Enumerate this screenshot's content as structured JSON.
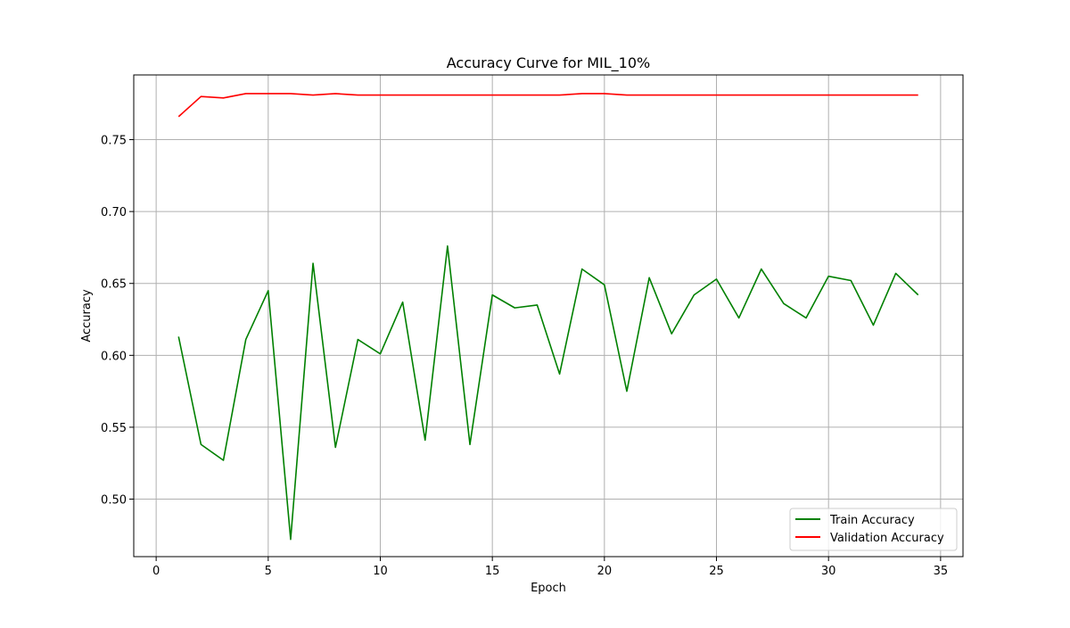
{
  "chart_data": {
    "type": "line",
    "title": "Accuracy Curve for MIL_10%",
    "xlabel": "Epoch",
    "ylabel": "Accuracy",
    "xlim": [
      -1,
      36
    ],
    "ylim": [
      0.46,
      0.795
    ],
    "xticks": [
      0,
      5,
      10,
      15,
      20,
      25,
      30,
      35
    ],
    "yticks": [
      0.5,
      0.55,
      0.6,
      0.65,
      0.7,
      0.75
    ],
    "xtick_labels": [
      "0",
      "5",
      "10",
      "15",
      "20",
      "25",
      "30",
      "35"
    ],
    "ytick_labels": [
      "0.50",
      "0.55",
      "0.60",
      "0.65",
      "0.70",
      "0.75"
    ],
    "grid": true,
    "legend_position": "lower-right",
    "x": [
      1,
      2,
      3,
      4,
      5,
      6,
      7,
      8,
      9,
      10,
      11,
      12,
      13,
      14,
      15,
      16,
      17,
      18,
      19,
      20,
      21,
      22,
      23,
      24,
      25,
      26,
      27,
      28,
      29,
      30,
      31,
      32,
      33,
      34
    ],
    "series": [
      {
        "name": "Train Accuracy",
        "color": "#008000",
        "values": [
          0.613,
          0.538,
          0.527,
          0.611,
          0.645,
          0.472,
          0.664,
          0.536,
          0.611,
          0.601,
          0.637,
          0.541,
          0.676,
          0.538,
          0.642,
          0.633,
          0.635,
          0.587,
          0.66,
          0.649,
          0.575,
          0.654,
          0.615,
          0.642,
          0.653,
          0.626,
          0.66,
          0.636,
          0.626,
          0.655,
          0.652,
          0.621,
          0.657,
          0.642
        ]
      },
      {
        "name": "Validation Accuracy",
        "color": "#ff0000",
        "values": [
          0.766,
          0.78,
          0.779,
          0.782,
          0.782,
          0.782,
          0.781,
          0.782,
          0.781,
          0.781,
          0.781,
          0.781,
          0.781,
          0.781,
          0.781,
          0.781,
          0.781,
          0.781,
          0.782,
          0.782,
          0.781,
          0.781,
          0.781,
          0.781,
          0.781,
          0.781,
          0.781,
          0.781,
          0.781,
          0.781,
          0.781,
          0.781,
          0.781,
          0.781
        ]
      }
    ]
  }
}
